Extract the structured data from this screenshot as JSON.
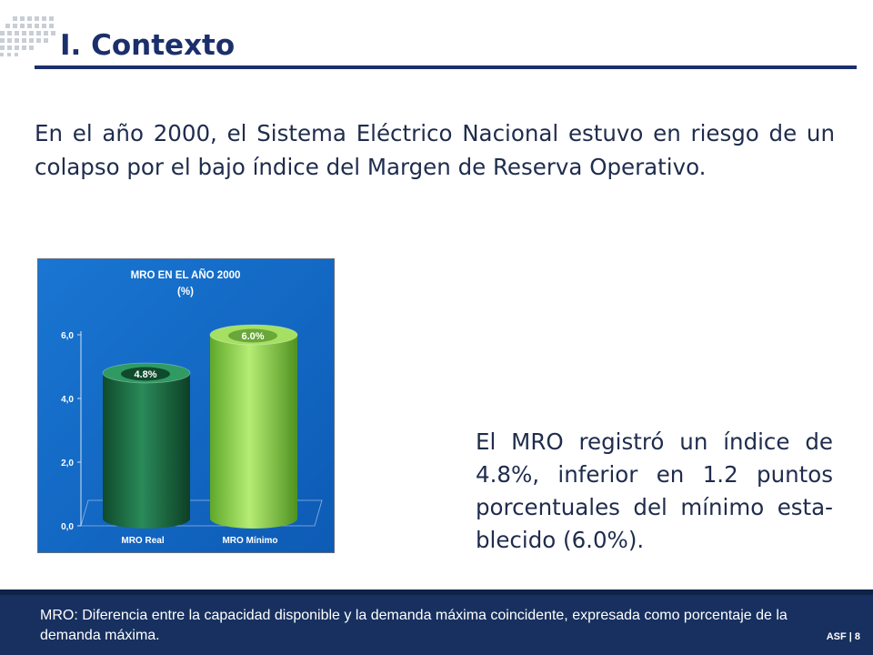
{
  "slide": {
    "title": "I. Contexto",
    "intro": "En el año 2000, el Sistema Eléctrico Nacional estuvo en riesgo de un colapso por el bajo índice del Margen de Reserva Operativo.",
    "side_lines": [
      "El MRO registró un índice de",
      "4.8%, inferior en 1.2 puntos",
      "porcentuales del mínimo esta-",
      "blecido (6.0%)."
    ],
    "footnote": "MRO: Diferencia entre la capacidad disponible y la demanda máxima coincidente, expresada como porcentaje de la demanda máxima.",
    "footer_label": "ASF | 8"
  },
  "colors": {
    "navy": "#1b2f6b",
    "chart_bg": "#1565c0",
    "bar_real": "#1e6b45",
    "bar_min": "#8fd14f"
  },
  "chart_data": {
    "type": "bar",
    "title": "MRO EN EL AÑO 2000",
    "subtitle": "(%)",
    "categories": [
      "MRO Real",
      "MRO Mínimo"
    ],
    "values": [
      4.8,
      6.0
    ],
    "data_labels": [
      "4.8%",
      "6.0%"
    ],
    "yticks": [
      "0,0",
      "2,0",
      "4,0",
      "6,0"
    ],
    "ylim": [
      0,
      6.0
    ],
    "xlabel": "",
    "ylabel": ""
  }
}
